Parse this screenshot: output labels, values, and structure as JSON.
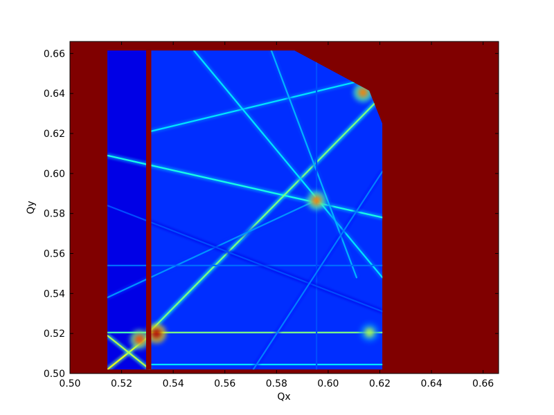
{
  "chart_data": {
    "type": "heatmap",
    "title": "",
    "xlabel": "Qx",
    "ylabel": "Qy",
    "xlim": [
      0.5,
      0.666
    ],
    "ylim": [
      0.5,
      0.666
    ],
    "x_ticks": [
      "0.50",
      "0.52",
      "0.54",
      "0.56",
      "0.58",
      "0.60",
      "0.62",
      "0.64",
      "0.66"
    ],
    "y_ticks": [
      "0.50",
      "0.52",
      "0.54",
      "0.56",
      "0.58",
      "0.60",
      "0.62",
      "0.64",
      "0.66"
    ],
    "grid": false,
    "legend": "none",
    "colormap": "jet",
    "background_color": "#800000",
    "filled_region": {
      "qx_min": 0.5145,
      "qx_max": 0.621,
      "qy_min": 0.502,
      "qy_max": 0.6615,
      "corner_cut_start": [
        0.587,
        0.6615
      ],
      "corner_cut_end": [
        0.621,
        0.625
      ]
    },
    "vertical_band": {
      "qx": 0.5305,
      "width": 0.002,
      "color": "#8b0000"
    },
    "resonance_lines": [
      {
        "from": [
          0.5145,
          0.609
        ],
        "to": [
          0.621,
          0.578
        ],
        "intensity": 0.35
      },
      {
        "from": [
          0.531,
          0.5205
        ],
        "to": [
          0.621,
          0.5205
        ],
        "intensity": 0.45
      },
      {
        "from": [
          0.5145,
          0.5205
        ],
        "to": [
          0.531,
          0.5205
        ],
        "intensity": 0.4
      },
      {
        "from": [
          0.531,
          0.5045
        ],
        "to": [
          0.621,
          0.5045
        ],
        "intensity": 0.3
      },
      {
        "from": [
          0.531,
          0.521
        ],
        "to": [
          0.621,
          0.639
        ],
        "intensity": 0.45
      },
      {
        "from": [
          0.531,
          0.621
        ],
        "to": [
          0.621,
          0.649
        ],
        "intensity": 0.3
      },
      {
        "from": [
          0.548,
          0.6615
        ],
        "to": [
          0.621,
          0.548
        ],
        "intensity": 0.3
      },
      {
        "from": [
          0.578,
          0.6615
        ],
        "to": [
          0.611,
          0.548
        ],
        "intensity": 0.25
      },
      {
        "from": [
          0.5145,
          0.538
        ],
        "to": [
          0.596,
          0.587
        ],
        "intensity": 0.22
      },
      {
        "from": [
          0.5145,
          0.554
        ],
        "to": [
          0.621,
          0.554
        ],
        "intensity": 0.18
      },
      {
        "from": [
          0.5955,
          0.502
        ],
        "to": [
          0.5955,
          0.6615
        ],
        "intensity": 0.15
      },
      {
        "from": [
          0.5145,
          0.584
        ],
        "to": [
          0.621,
          0.531
        ],
        "intensity": 0.15
      },
      {
        "from": [
          0.571,
          0.502
        ],
        "to": [
          0.621,
          0.601
        ],
        "intensity": 0.2
      },
      {
        "from": [
          0.5145,
          0.502
        ],
        "to": [
          0.531,
          0.519
        ],
        "intensity": 0.55
      },
      {
        "from": [
          0.531,
          0.502
        ],
        "to": [
          0.5145,
          0.519
        ],
        "intensity": 0.5
      }
    ],
    "hot_spots": [
      {
        "qx": 0.5955,
        "qy": 0.5865,
        "intensity": 0.75
      },
      {
        "qx": 0.5335,
        "qy": 0.52,
        "intensity": 0.95
      },
      {
        "qx": 0.527,
        "qy": 0.517,
        "intensity": 0.8
      },
      {
        "qx": 0.6135,
        "qy": 0.6405,
        "intensity": 0.75
      },
      {
        "qx": 0.616,
        "qy": 0.5205,
        "intensity": 0.55
      }
    ]
  }
}
